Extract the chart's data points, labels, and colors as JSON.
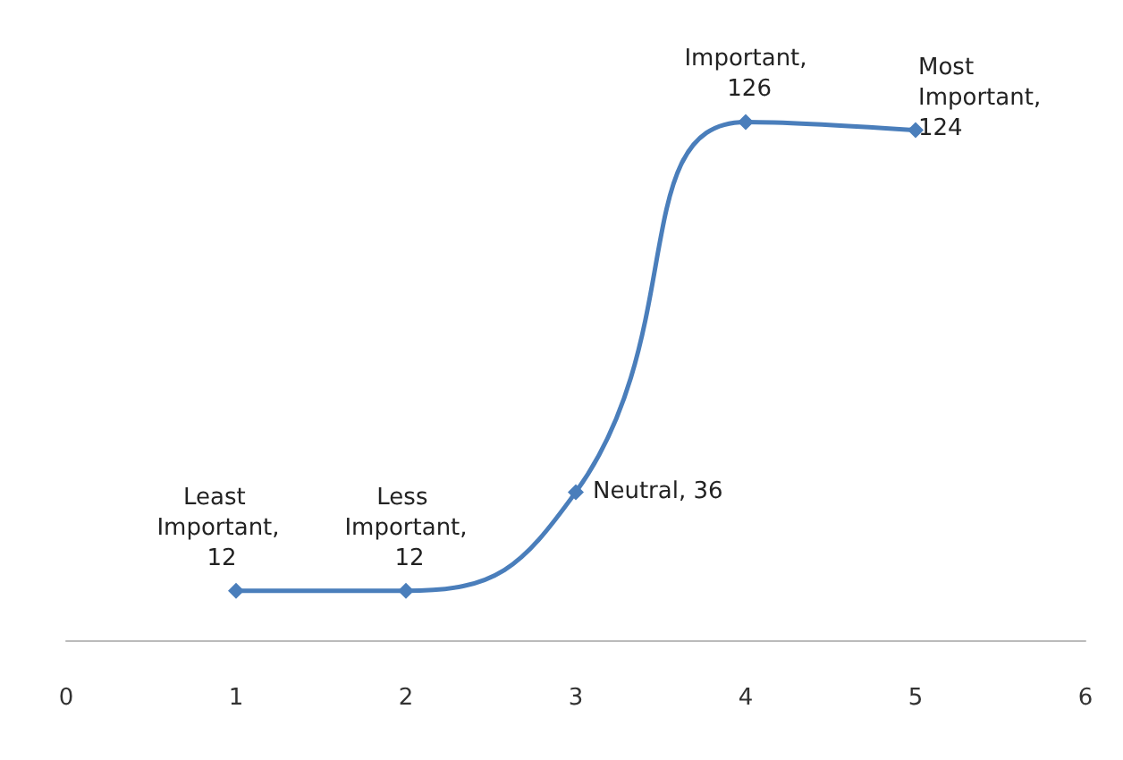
{
  "chart_data": {
    "type": "line",
    "x": [
      1,
      2,
      3,
      4,
      5
    ],
    "series": [
      {
        "color": "#4a7ebb",
        "values": [
          12,
          12,
          36,
          126,
          124
        ],
        "value_labels": [
          "Least Important, 12",
          "Less Important, 12",
          "Neutral, 36",
          "Important, 126",
          "Most Important, 124"
        ]
      }
    ],
    "xlim": [
      0,
      6
    ],
    "xticks": [
      0,
      1,
      2,
      3,
      4,
      5,
      6
    ],
    "tick_labels": "x",
    "marker": "diamond",
    "line_style": "solid",
    "grid": false
  }
}
